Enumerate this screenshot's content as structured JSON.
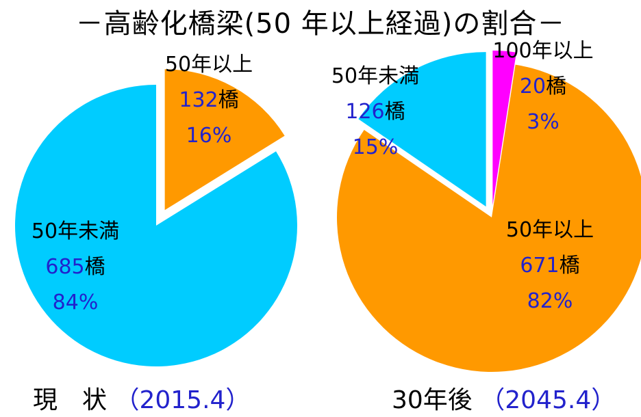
{
  "title": "－高齢化橋梁(50 年以上経過)の割合－",
  "captions": [
    {
      "label": "現　状",
      "year": "（2015.4）"
    },
    {
      "label": "30年後",
      "year": "（2045.4）"
    }
  ],
  "colors": {
    "cyan": "#00ccff",
    "orange": "#ff9900",
    "magenta": "#ff00ff",
    "count_text": "#2222cc"
  },
  "chart_data": [
    {
      "type": "pie",
      "title": "",
      "slices": [
        {
          "label": "50年以上",
          "value": 132,
          "unit": "橋",
          "percent": "16%",
          "color": "#ff9900",
          "exploded": true
        },
        {
          "label": "50年未満",
          "value": 685,
          "unit": "橋",
          "percent": "84%",
          "color": "#00ccff",
          "exploded": false
        }
      ]
    },
    {
      "type": "pie",
      "title": "",
      "slices": [
        {
          "label": "100年以上",
          "value": 20,
          "unit": "橋",
          "percent": "3%",
          "color": "#ff00ff",
          "exploded": true
        },
        {
          "label": "50年以上",
          "value": 671,
          "unit": "橋",
          "percent": "82%",
          "color": "#ff9900",
          "exploded": false
        },
        {
          "label": "50年未満",
          "value": 126,
          "unit": "橋",
          "percent": "15%",
          "color": "#00ccff",
          "exploded": true
        }
      ]
    }
  ]
}
